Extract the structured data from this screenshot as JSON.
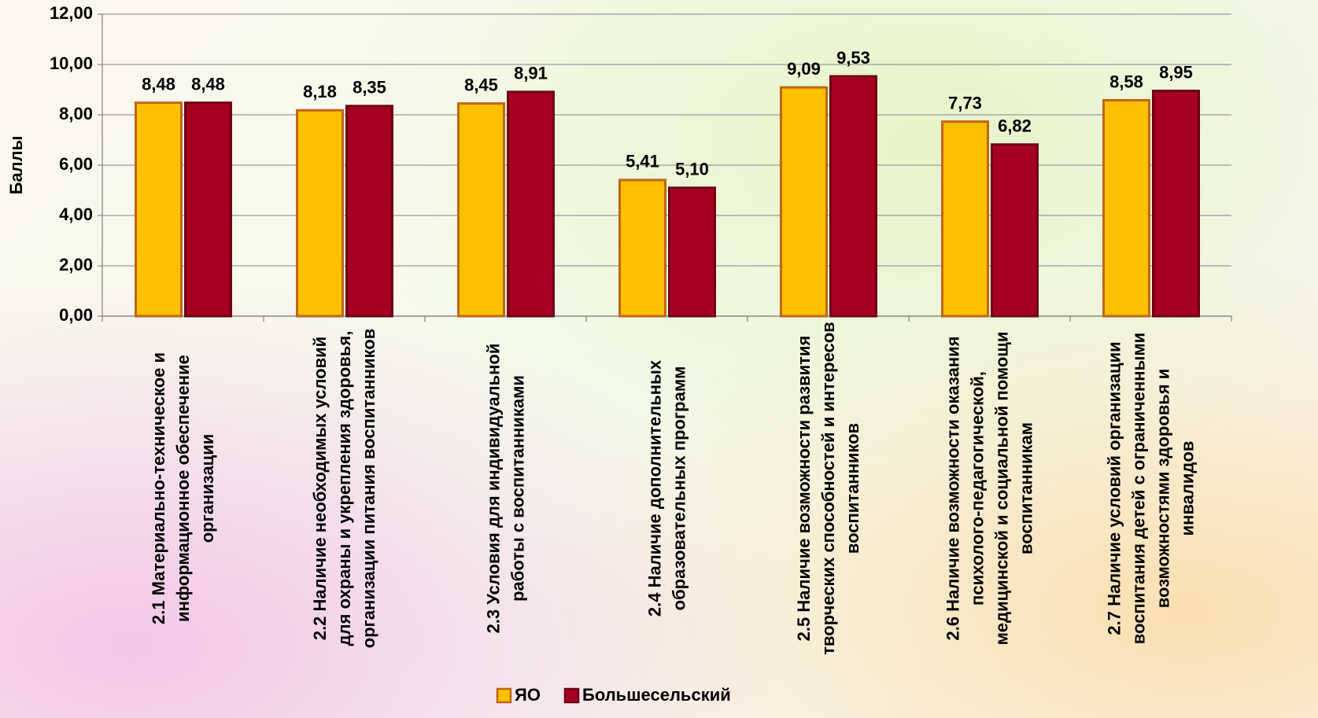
{
  "chart_data": {
    "type": "bar",
    "y_label": "Баллы",
    "categories": [
      "2.1 Материально-техническое и информационное обеспечение организации",
      "2.2 Наличие необходимых условий для охраны и укрепления здоровья, организации питания воспитанников",
      "2.3 Условия для индивидуальной работы с воспитанниками",
      "2.4 Наличие дополнительных образовательных программ",
      "2.5 Наличие возможности развития творческих способностей и интересов воспитанников",
      "2.6 Наличие возможности оказания психолого-педагогической, медицинской и социальной помощи воспитанникам",
      "2.7 Наличие условий организации воспитания детей с ограниченными возможностями здоровья и инвалидов"
    ],
    "series": [
      {
        "name": "ЯО",
        "color": "#ffc000",
        "values": [
          8.48,
          8.18,
          8.45,
          5.41,
          9.09,
          7.73,
          8.58
        ],
        "value_labels": [
          "8,48",
          "8,18",
          "8,45",
          "5,41",
          "9,09",
          "7,73",
          "8,58"
        ]
      },
      {
        "name": "Большесельский",
        "color": "#a50021",
        "values": [
          8.48,
          8.35,
          8.91,
          5.1,
          9.53,
          6.82,
          8.95
        ],
        "value_labels": [
          "8,48",
          "8,35",
          "8,91",
          "5,10",
          "9,53",
          "6,82",
          "8,95"
        ]
      }
    ],
    "ylim": [
      0,
      12
    ],
    "yticks": [
      {
        "value": 0,
        "label": "0,00"
      },
      {
        "value": 2,
        "label": "2,00"
      },
      {
        "value": 4,
        "label": "4,00"
      },
      {
        "value": 6,
        "label": "6,00"
      },
      {
        "value": 8,
        "label": "8,00"
      },
      {
        "value": 10,
        "label": "10,00"
      },
      {
        "value": 12,
        "label": "12,00"
      }
    ],
    "grid": true,
    "legend": "bottom"
  }
}
